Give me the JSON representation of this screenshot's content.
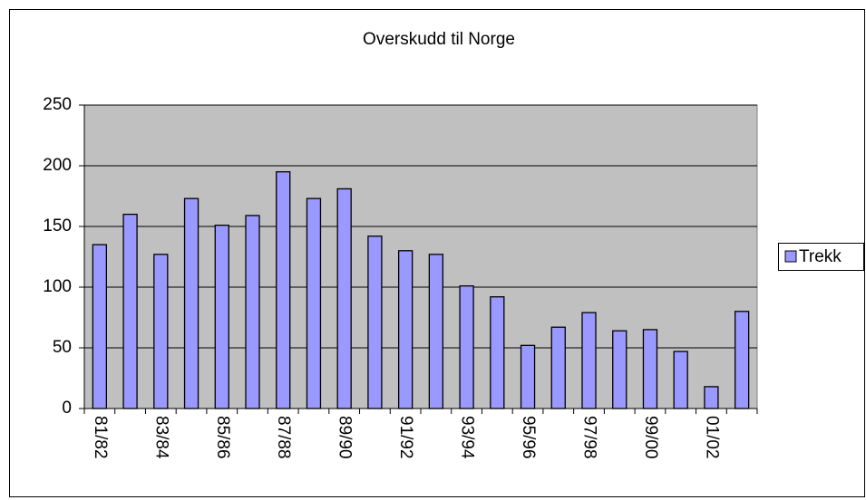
{
  "chart_data": {
    "type": "bar",
    "title": "Overskudd til Norge",
    "categories": [
      "81/82",
      null,
      "83/84",
      null,
      "85/86",
      null,
      "87/88",
      null,
      "89/90",
      null,
      "91/92",
      null,
      "93/94",
      null,
      "95/96",
      null,
      "97/98",
      null,
      "99/00",
      null,
      "01/02",
      null
    ],
    "series": [
      {
        "name": "Trekk",
        "color": "#9999ff",
        "values": [
          135,
          160,
          127,
          173,
          151,
          159,
          195,
          173,
          181,
          142,
          130,
          127,
          101,
          92,
          52,
          67,
          79,
          64,
          65,
          47,
          18,
          80
        ]
      }
    ],
    "ylim": [
      0,
      250
    ],
    "yticks": [
      0,
      50,
      100,
      150,
      200,
      250
    ],
    "grid": true,
    "legend": "right"
  }
}
